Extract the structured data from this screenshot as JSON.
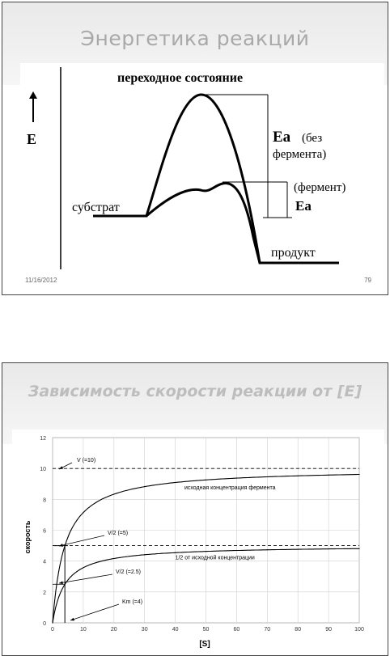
{
  "slide1": {
    "title": "Энергетика реакций",
    "y_axis_label": "E",
    "transition_label": "переходное состояние",
    "substrate_label": "субстрат",
    "product_label": "продукт",
    "ea_no_enzyme": {
      "symbol": "Ea",
      "line1": "(без",
      "line2": "фермента)"
    },
    "ea_enzyme": {
      "line1": "(фермент)",
      "symbol": "Ea"
    },
    "date": "11/16/2012",
    "page": "79"
  },
  "slide2": {
    "title": "Зависимость скорости реакции от [E]",
    "chart_data": {
      "type": "line",
      "xlabel": "[S]",
      "ylabel": "скорость",
      "xlim": [
        0,
        100
      ],
      "ylim": [
        0,
        12
      ],
      "x_ticks": [
        "0",
        "10",
        "20",
        "30",
        "40",
        "50",
        "60",
        "70",
        "80",
        "90",
        "100"
      ],
      "y_ticks": [
        "0",
        "2",
        "4",
        "6",
        "8",
        "10",
        "12"
      ],
      "series": [
        {
          "name": "исходная концентрация фермента",
          "vmax": 10,
          "km": 4,
          "x": [
            0,
            2,
            4,
            6,
            8,
            10,
            15,
            20,
            30,
            40,
            50,
            60,
            70,
            80,
            90,
            100
          ],
          "y": [
            0,
            3.33,
            5.0,
            6.0,
            6.67,
            7.14,
            7.89,
            8.33,
            8.82,
            9.09,
            9.26,
            9.38,
            9.46,
            9.52,
            9.57,
            9.62
          ]
        },
        {
          "name": "1/2 от исходной концентрации",
          "vmax": 5,
          "km": 4,
          "x": [
            0,
            2,
            4,
            6,
            8,
            10,
            15,
            20,
            30,
            40,
            50,
            60,
            70,
            80,
            90,
            100
          ],
          "y": [
            0,
            1.67,
            2.5,
            3.0,
            3.33,
            3.57,
            3.95,
            4.17,
            4.41,
            4.55,
            4.63,
            4.69,
            4.73,
            4.76,
            4.79,
            4.81
          ]
        }
      ],
      "dashed_lines": [
        10,
        5
      ],
      "annotations": {
        "vmax": "V (=10)",
        "half_v": "V/2 (=5)",
        "half_v_half": "V/2 (=2.5)",
        "km": "Km (=4)"
      },
      "km_value": 4
    }
  }
}
